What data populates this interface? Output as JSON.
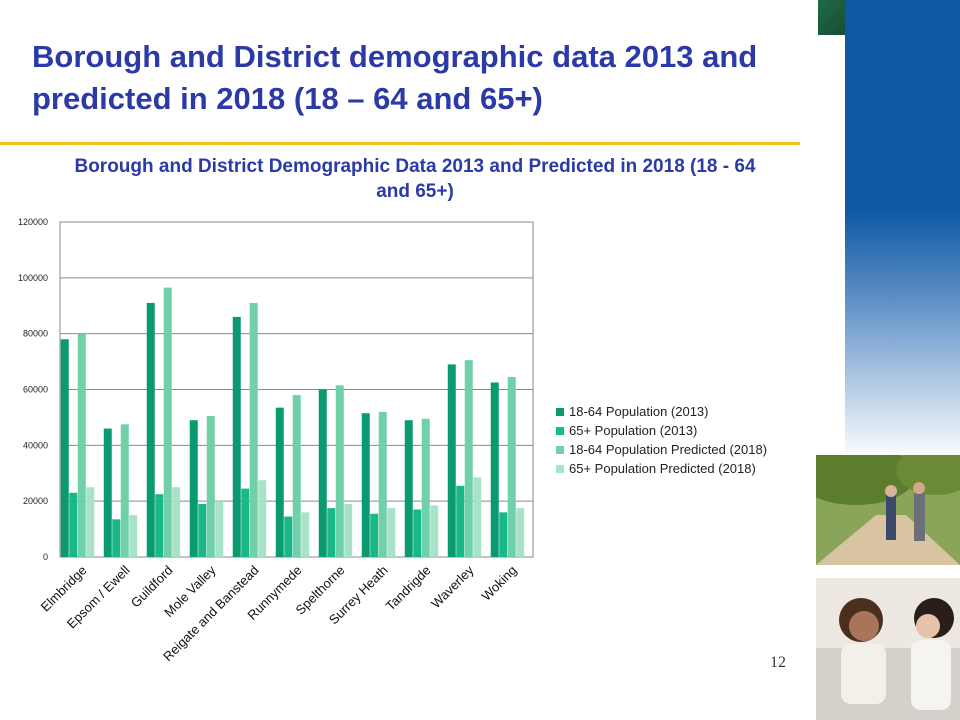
{
  "slide": {
    "title": "Borough and District demographic data 2013 and predicted in 2018 (18 – 64 and 65+)",
    "page_number": "12"
  },
  "colors": {
    "title": "#2b3aa6",
    "rule": "#f1c21b",
    "side_band": "#0d57a3"
  },
  "images": {
    "photo_1": "couple-walking-photo",
    "photo_2": "two-women-talking-photo"
  },
  "chart_data": {
    "type": "bar",
    "title": "Borough and District Demographic Data 2013 and Predicted in 2018 (18 - 64 and 65+)",
    "xlabel": "",
    "ylabel": "",
    "ylim": [
      0,
      120000
    ],
    "yticks": [
      "0",
      "20000",
      "40000",
      "60000",
      "80000",
      "100000",
      "120000"
    ],
    "grid": true,
    "legend_position": "right",
    "categories": [
      "Elmbridge",
      "Epsom / Ewell",
      "Guildford",
      "Mole Valley",
      "Reigate and Banstead",
      "Runnymede",
      "Spelthorne",
      "Surrey Heath",
      "Tandrigde",
      "Waverley",
      "Woking"
    ],
    "series": [
      {
        "name": "18-64 Population (2013)",
        "color": "#0a9a70",
        "values": [
          78000,
          46000,
          91000,
          49000,
          86000,
          53500,
          60000,
          51500,
          49000,
          69000,
          62500
        ]
      },
      {
        "name": "65+ Population (2013)",
        "color": "#18b889",
        "values": [
          23000,
          13500,
          22500,
          19000,
          24500,
          14500,
          17500,
          15500,
          17000,
          25500,
          16000
        ]
      },
      {
        "name": "18-64 Population Predicted (2018)",
        "color": "#6fd0aa",
        "values": [
          80000,
          47500,
          96500,
          50500,
          91000,
          58000,
          61500,
          52000,
          49500,
          70500,
          64500
        ]
      },
      {
        "name": "65+ Population Predicted (2018)",
        "color": "#a8e3c9",
        "values": [
          25000,
          15000,
          25000,
          20000,
          27500,
          16000,
          19000,
          17500,
          18500,
          28500,
          17500
        ]
      }
    ]
  }
}
